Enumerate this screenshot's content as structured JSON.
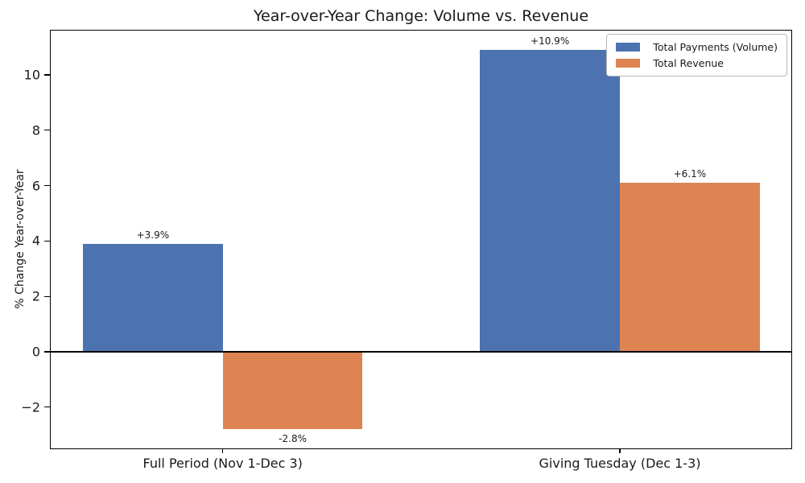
{
  "chart_data": {
    "type": "bar",
    "title": "Year-over-Year Change: Volume vs. Revenue",
    "xlabel": "",
    "ylabel": "% Change Year-over-Year",
    "categories": [
      "Full Period (Nov 1-Dec 3)",
      "Giving Tuesday (Dec 1-3)"
    ],
    "series": [
      {
        "name": "Total Payments (Volume)",
        "color": "#4c72b0",
        "values": [
          3.9,
          10.9
        ],
        "labels": [
          "+3.9%",
          "+10.9%"
        ]
      },
      {
        "name": "Total Revenue",
        "color": "#dd8452",
        "values": [
          -2.8,
          6.1
        ],
        "labels": [
          "-2.8%",
          "+6.1%"
        ]
      }
    ],
    "yticks": [
      -2,
      0,
      2,
      4,
      6,
      8,
      10
    ],
    "ytick_labels": [
      "−2",
      "0",
      "2",
      "4",
      "6",
      "8",
      "10"
    ],
    "ylim": [
      -3.52,
      11.63
    ],
    "grid": false,
    "zero_line": true,
    "legend_position": "upper right"
  }
}
